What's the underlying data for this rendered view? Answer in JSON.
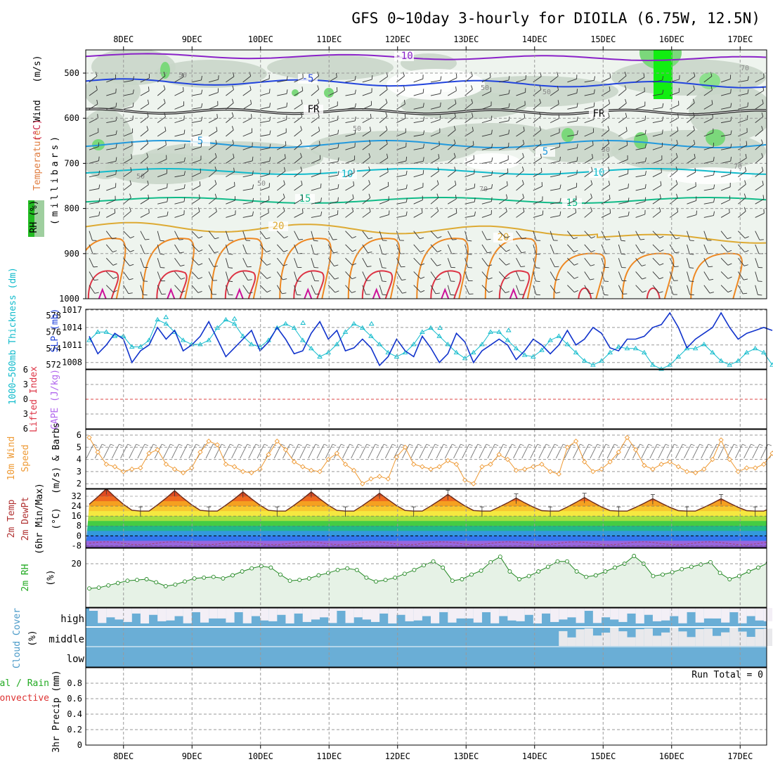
{
  "title": "GFS 0~10day 3-hourly for DIOILA (6.75W, 12.5N)",
  "colors": {
    "purple": "#8a22c8",
    "blue": "#2244dd",
    "lblue": "#2299dd",
    "cyan": "#11bbcc",
    "teal": "#11bb88",
    "gold": "#ddaa33",
    "orange": "#ee8822",
    "red": "#dd3344",
    "magenta": "#cc1199",
    "green": "#22aa22",
    "dkblue": "#1133cc",
    "cloud": "#6aaed6",
    "orangeline": "#ee9933",
    "greenline": "#228822"
  },
  "chart_data": {
    "type": "multi-panel meteogram",
    "x_labels": [
      "8DEC",
      "9DEC",
      "10DEC",
      "11DEC",
      "12DEC",
      "13DEC",
      "14DEC",
      "15DEC",
      "16DEC",
      "17DEC"
    ],
    "panel1": {
      "y_ticks": [
        500,
        600,
        700,
        800,
        900,
        1000
      ],
      "labels": {
        "wind": "Wind",
        "wind_unit": "(m/s)",
        "temperature": "Temperature",
        "temperature_unit": "(°C)",
        "rh": "RH (%)",
        "pressure": "(millibars)"
      },
      "contour_labels": [
        "-10",
        "-5",
        "FR",
        "FR",
        "5",
        "5",
        "10",
        "10",
        "15",
        "15",
        "20",
        "20"
      ],
      "rh_labels": [
        "50",
        "50",
        "50",
        "50",
        "50",
        "50",
        "70",
        "70",
        "50",
        "70"
      ]
    },
    "panel2": {
      "y_ticks_left": [
        578,
        576,
        574,
        572
      ],
      "y_ticks_right": [
        1017,
        1014,
        1011,
        1008
      ],
      "label_thk": "1000~500mb Thickness (dm)",
      "label_slp": "SLP (mb)",
      "slp": [
        1012.5,
        1009.5,
        1011,
        1013,
        1012,
        1008,
        1010,
        1011,
        1014,
        1012,
        1013.5,
        1010,
        1011,
        1012.5,
        1015,
        1012,
        1009,
        1010.5,
        1012,
        1013.5,
        1010,
        1011.5,
        1014,
        1012,
        1009.5,
        1010,
        1013,
        1015,
        1012,
        1013.5,
        1010,
        1010.5,
        1012,
        1010.5,
        1007.5,
        1009,
        1012,
        1010,
        1009,
        1012.5,
        1010.5,
        1008,
        1009.5,
        1013,
        1011.5,
        1008,
        1010,
        1011,
        1012,
        1011,
        1008.5,
        1010,
        1012,
        1011,
        1009.5,
        1011,
        1013.5,
        1011,
        1012,
        1014,
        1013,
        1010.5,
        1010,
        1012,
        1012,
        1012.5,
        1014,
        1014.5,
        1016.5,
        1014,
        1010.5,
        1012,
        1013,
        1014,
        1016.5,
        1014,
        1012,
        1013,
        1013.5,
        1014,
        1013.5
      ],
      "thickness": [
        575,
        576,
        576,
        575.5,
        575.5,
        574.2,
        574.2,
        575,
        577.5,
        577,
        576,
        575,
        574.5,
        574.5,
        575,
        576.5,
        577.5,
        577,
        575.5,
        574.5,
        574.2,
        575,
        576.5,
        577,
        576.5,
        575,
        574,
        573,
        573.5,
        574.5,
        576,
        577,
        576.5,
        575.5,
        574.5,
        573.5,
        573,
        573.5,
        574.5,
        576,
        576.5,
        575.5,
        574.5,
        573.5,
        572.8,
        573.5,
        574.5,
        576,
        576,
        575,
        574,
        573.2,
        573,
        573.8,
        575,
        575.5,
        574.5,
        573.5,
        572.5,
        572,
        572.5,
        573.5,
        574.2,
        574,
        574,
        573.5,
        572,
        571.5,
        572,
        573,
        574,
        574,
        574.5,
        573.5,
        572.5,
        572,
        572.5,
        573.5,
        574,
        573.5,
        572
      ],
      "thickness_peaks": [
        [
          8.62,
          577.8
        ],
        [
          9.62,
          577.6
        ],
        [
          10.62,
          577.1
        ],
        [
          11.62,
          577
        ],
        [
          12.62,
          576.5
        ],
        [
          13.62,
          576.2
        ]
      ]
    },
    "panel3": {
      "y_ticks": [
        "6",
        "3",
        "0",
        "3",
        "6"
      ],
      "label_li": "Lifted Index",
      "label_cape": "CAPE (J/kg)"
    },
    "panel4": {
      "y_ticks": [
        6,
        5,
        4,
        3,
        2
      ],
      "label_a": "10m Wind",
      "label_b": "Speed",
      "label_c": "(m/s) & Barbs",
      "speed": [
        5.8,
        4.6,
        3.6,
        3.4,
        3.0,
        3.2,
        3.3,
        4.5,
        4.8,
        3.6,
        3.2,
        2.9,
        3.3,
        4.6,
        5.5,
        5.2,
        3.6,
        3.4,
        3.0,
        2.9,
        3.2,
        4.4,
        5.5,
        4.8,
        3.8,
        3.4,
        3.1,
        3.0,
        4.0,
        4.5,
        3.6,
        3.1,
        2.0,
        2.4,
        2.6,
        2.4,
        4.2,
        5.0,
        3.6,
        3.4,
        3.2,
        3.4,
        3.9,
        3.6,
        2.3,
        2.0,
        3.4,
        3.6,
        4.4,
        4.0,
        3.1,
        3.2,
        3.4,
        3.6,
        3.0,
        2.8,
        5.0,
        5.5,
        3.8,
        3.0,
        3.2,
        3.8,
        4.6,
        5.8,
        4.8,
        3.5,
        3.2,
        3.6,
        3.8,
        3.4,
        3.0,
        2.9,
        3.2,
        4.0,
        5.6,
        4.0,
        3.0,
        3.3,
        3.3,
        3.6,
        4.5
      ]
    },
    "panel5": {
      "y_ticks": [
        32,
        24,
        16,
        8,
        0,
        -8
      ],
      "label_a": "2m Temp",
      "label_b": "2m DewPt",
      "label_c": "(6hr Min/Max)",
      "label_unit": "(°C)",
      "temp_max": [
        38,
        36.5,
        35.5,
        35.5,
        34.5,
        33.5,
        30.5,
        31,
        30
      ],
      "temp_min": 20,
      "dewpoint_mean": -6
    },
    "panel6": {
      "y_ticks": [
        20
      ],
      "label_a": "2m RH",
      "label_unit": "(%)",
      "rh": [
        4,
        4.5,
        6,
        7.5,
        9,
        9.5,
        10,
        8,
        5.5,
        6.5,
        8.5,
        10.5,
        11,
        11.5,
        10.5,
        12.5,
        15,
        17,
        18.5,
        17.5,
        13,
        9,
        9.5,
        10.5,
        12.5,
        14,
        16,
        17,
        16,
        11,
        8.5,
        9.5,
        11,
        13.5,
        16,
        19,
        21.5,
        17.5,
        9,
        10,
        13,
        15.5,
        21,
        24.5,
        15,
        10,
        12,
        15,
        18,
        21.5,
        21.5,
        15,
        11.5,
        12.5,
        15,
        17.5,
        20,
        25,
        20,
        12,
        13,
        14.5,
        16.5,
        18,
        19.5,
        21,
        14,
        10,
        12,
        15,
        17.5,
        20.5
      ]
    },
    "panel7": {
      "levels": [
        "high",
        "middle",
        "low"
      ],
      "label_a": "Cloud Cover",
      "label_unit": "(%)"
    },
    "panel8": {
      "y_ticks": [
        "0.8",
        "0.6",
        "0.4",
        "0.2",
        "0"
      ],
      "run_total": "Run Total = 0",
      "label_total": "Total / Rain",
      "label_conv": "Convective",
      "label_precip": "3hr Precip (mm)"
    }
  }
}
